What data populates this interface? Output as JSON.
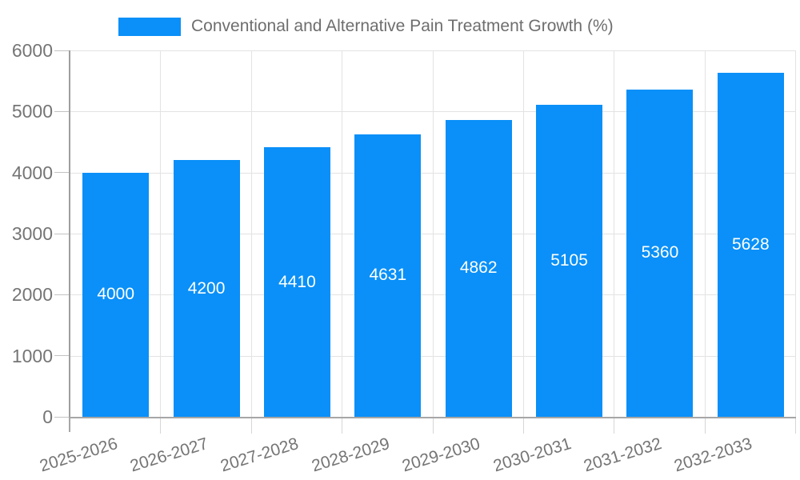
{
  "chart_data": {
    "type": "bar",
    "legend": "Conventional and Alternative Pain Treatment Growth (%)",
    "legend_position": "top",
    "categories": [
      "2025-2026",
      "2026-2027",
      "2027-2028",
      "2028-2029",
      "2029-2030",
      "2030-2031",
      "2031-2032",
      "2032-2033"
    ],
    "values": [
      4000,
      4200,
      4410,
      4631,
      4862,
      5105,
      5360,
      5628
    ],
    "value_labels_position": "inside-center",
    "xlabel": "",
    "ylabel": "",
    "ylim": [
      0,
      6000
    ],
    "ytick_step": 1000,
    "ytick_labels": [
      "0",
      "1000",
      "2000",
      "3000",
      "4000",
      "5000",
      "6000"
    ],
    "grid": true,
    "colors": {
      "bar": "#0a90f8",
      "grid_line": "#e3e3e3",
      "axis_line": "#9e9e9e",
      "tick_text": "#757575",
      "legend_text": "#6e6e6e",
      "value_label_text": "#ffffff",
      "background": "#ffffff"
    }
  }
}
